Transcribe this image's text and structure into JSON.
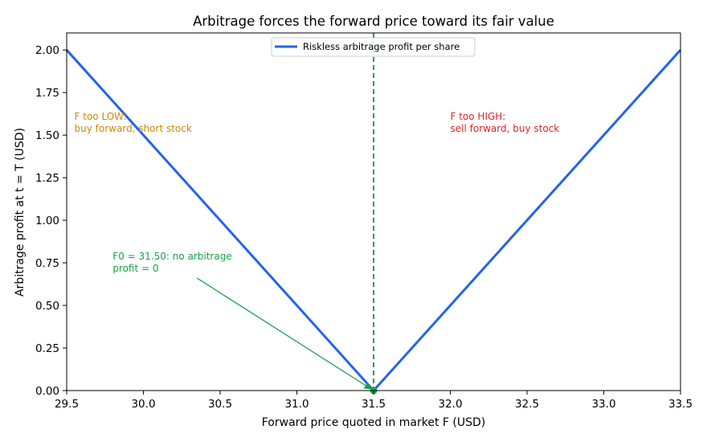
{
  "chart_data": {
    "type": "line",
    "title": "Arbitrage forces the forward price toward its fair value",
    "xlabel": "Forward price quoted in market F (USD)",
    "ylabel": "Arbitrage profit at t = T (USD)",
    "xlim": [
      29.5,
      33.5
    ],
    "ylim": [
      0,
      2.1
    ],
    "xticks": [
      "29.5",
      "30.0",
      "30.5",
      "31.0",
      "31.5",
      "32.0",
      "32.5",
      "33.0",
      "33.5"
    ],
    "yticks": [
      "0.00",
      "0.25",
      "0.50",
      "0.75",
      "1.00",
      "1.25",
      "1.50",
      "1.75",
      "2.00"
    ],
    "grid": false,
    "legend_position": "top-center",
    "series": [
      {
        "name": "Riskless arbitrage profit per share",
        "color": "#2563eb",
        "x": [
          29.5,
          31.5,
          33.5
        ],
        "y": [
          2.0,
          0.0,
          2.0
        ]
      }
    ],
    "fair_value": {
      "x": 31.5,
      "color": "#16a34a"
    },
    "annotations": [
      {
        "id": "low",
        "lines": [
          "F too LOW:",
          "buy forward, short stock"
        ],
        "x": 29.55,
        "y": 1.59,
        "color": "#ca8a04"
      },
      {
        "id": "high",
        "lines": [
          "F too HIGH:",
          "sell forward, buy stock"
        ],
        "x": 32.0,
        "y": 1.59,
        "color": "#dc2626"
      },
      {
        "id": "fair",
        "lines": [
          "F0 = 31.50: no arbitrage",
          "profit = 0"
        ],
        "x": 29.8,
        "y": 0.77,
        "color": "#16a34a",
        "arrow_from": [
          30.35,
          0.66
        ],
        "arrow_to": [
          31.5,
          0.0
        ]
      }
    ]
  }
}
